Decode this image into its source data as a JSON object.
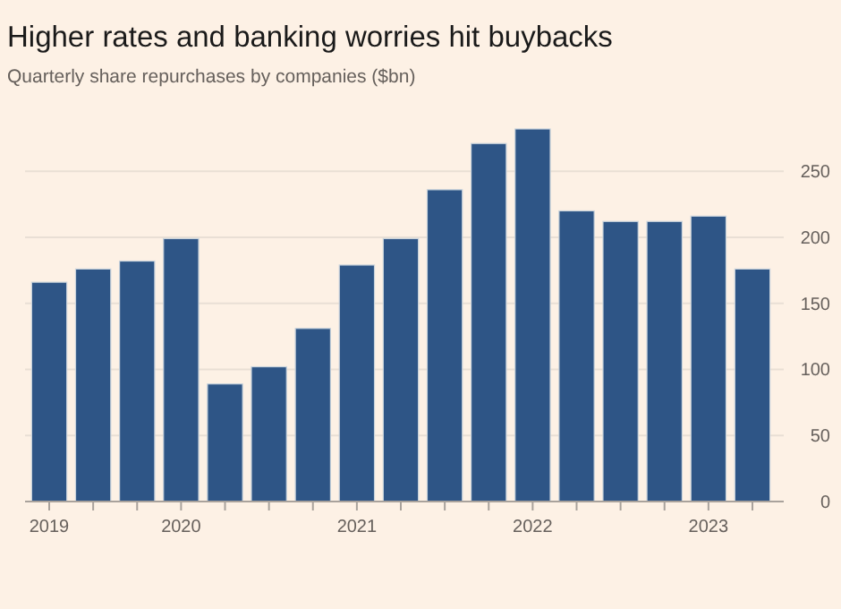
{
  "chart_data": {
    "type": "bar",
    "title": "Higher rates and banking worries hit buybacks",
    "subtitle": "Quarterly share repurchases by companies ($bn)",
    "categories": [
      "2019",
      null,
      null,
      "2020",
      null,
      null,
      null,
      "2021",
      null,
      null,
      null,
      "2022",
      null,
      null,
      null,
      "2023",
      null
    ],
    "values": [
      166,
      176,
      182,
      199,
      89,
      102,
      131,
      179,
      199,
      236,
      271,
      282,
      220,
      212,
      212,
      216,
      176
    ],
    "color": "#2e5586",
    "ylim": [
      0,
      282
    ],
    "yticks": [
      0,
      50,
      100,
      150,
      200,
      250
    ],
    "grid": "y"
  }
}
